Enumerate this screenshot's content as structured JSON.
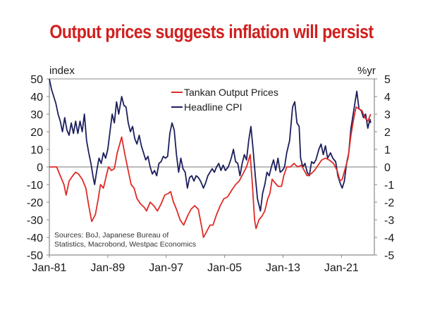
{
  "chart_data": {
    "type": "line",
    "title": "Output prices suggests inflation will persist",
    "title_color": "#d0201f",
    "left_axis": {
      "label": "index",
      "ylim": [
        -50,
        50
      ],
      "ticks": [
        "50",
        "40",
        "30",
        "20",
        "10",
        "0",
        "-10",
        "-20",
        "-30",
        "-40",
        "-50"
      ]
    },
    "right_axis": {
      "label": "%yr",
      "ylim": [
        -5,
        5
      ],
      "ticks": [
        "5",
        "4",
        "3",
        "2",
        "1",
        "0",
        "-1",
        "-2",
        "-3",
        "-4",
        "-5"
      ]
    },
    "x_axis": {
      "range": [
        1981,
        2025.5
      ],
      "ticks": [
        "Jan-81",
        "Jan-89",
        "Jan-97",
        "Jan-05",
        "Jan-13",
        "Jan-21"
      ],
      "tick_years": [
        1981,
        1989,
        1997,
        2005,
        2013,
        2021
      ]
    },
    "grid": false,
    "zero_line": true,
    "legend": {
      "placement": "top-center"
    },
    "source": [
      "Sources: BoJ, Japanese Bureau of",
      "Statistics, Macrobond, Westpac Economics"
    ],
    "series": [
      {
        "name": "Tankan Output Prices",
        "axis": "left",
        "color": "#e02a26",
        "points": [
          [
            1981.0,
            0
          ],
          [
            1982.0,
            0
          ],
          [
            1982.5,
            -5
          ],
          [
            1983.0,
            -10
          ],
          [
            1983.3,
            -16
          ],
          [
            1983.7,
            -8
          ],
          [
            1984.2,
            -5
          ],
          [
            1984.6,
            -3
          ],
          [
            1985.0,
            -4
          ],
          [
            1985.5,
            -7
          ],
          [
            1986.0,
            -12
          ],
          [
            1986.4,
            -22
          ],
          [
            1986.8,
            -31
          ],
          [
            1987.3,
            -27
          ],
          [
            1987.7,
            -18
          ],
          [
            1988.0,
            -10
          ],
          [
            1988.4,
            -12
          ],
          [
            1988.8,
            -5
          ],
          [
            1989.1,
            0
          ],
          [
            1989.5,
            -2
          ],
          [
            1989.9,
            -1
          ],
          [
            1990.3,
            8
          ],
          [
            1990.9,
            17
          ],
          [
            1991.3,
            8
          ],
          [
            1991.7,
            0
          ],
          [
            1992.2,
            -10
          ],
          [
            1992.6,
            -12
          ],
          [
            1993.0,
            -18
          ],
          [
            1993.5,
            -21
          ],
          [
            1994.0,
            -23
          ],
          [
            1994.3,
            -25
          ],
          [
            1994.8,
            -20
          ],
          [
            1995.3,
            -22
          ],
          [
            1995.8,
            -25
          ],
          [
            1996.3,
            -21
          ],
          [
            1996.8,
            -16
          ],
          [
            1997.3,
            -15
          ],
          [
            1997.6,
            -14
          ],
          [
            1998.0,
            -20
          ],
          [
            1998.4,
            -24
          ],
          [
            1998.9,
            -30
          ],
          [
            1999.4,
            -33
          ],
          [
            1999.9,
            -28
          ],
          [
            2000.4,
            -24
          ],
          [
            2000.9,
            -22
          ],
          [
            2001.4,
            -24
          ],
          [
            2001.9,
            -35
          ],
          [
            2002.1,
            -40
          ],
          [
            2002.5,
            -37
          ],
          [
            2003.0,
            -33
          ],
          [
            2003.4,
            -33
          ],
          [
            2003.9,
            -27
          ],
          [
            2004.4,
            -22
          ],
          [
            2004.9,
            -18
          ],
          [
            2005.4,
            -17
          ],
          [
            2006.0,
            -13
          ],
          [
            2006.5,
            -10
          ],
          [
            2007.0,
            -8
          ],
          [
            2007.5,
            -4
          ],
          [
            2008.0,
            0
          ],
          [
            2008.5,
            7
          ],
          [
            2008.8,
            -10
          ],
          [
            2009.1,
            -30
          ],
          [
            2009.3,
            -35
          ],
          [
            2009.7,
            -30
          ],
          [
            2010.1,
            -28
          ],
          [
            2010.5,
            -25
          ],
          [
            2010.9,
            -18
          ],
          [
            2011.2,
            -15
          ],
          [
            2011.5,
            -7
          ],
          [
            2011.9,
            -9
          ],
          [
            2012.3,
            -11
          ],
          [
            2012.8,
            -11
          ],
          [
            2013.1,
            -5
          ],
          [
            2013.5,
            0
          ],
          [
            2014.0,
            0
          ],
          [
            2014.5,
            2
          ],
          [
            2015.0,
            0
          ],
          [
            2015.5,
            1
          ],
          [
            2015.9,
            -2
          ],
          [
            2016.3,
            -5
          ],
          [
            2016.8,
            -4
          ],
          [
            2017.3,
            -2
          ],
          [
            2017.8,
            1
          ],
          [
            2018.3,
            4
          ],
          [
            2018.8,
            5
          ],
          [
            2019.3,
            4
          ],
          [
            2019.9,
            2
          ],
          [
            2020.4,
            -2
          ],
          [
            2020.8,
            -8
          ],
          [
            2021.1,
            -7
          ],
          [
            2021.5,
            -1
          ],
          [
            2021.9,
            5
          ],
          [
            2022.3,
            18
          ],
          [
            2022.7,
            28
          ],
          [
            2023.0,
            34
          ],
          [
            2023.4,
            33
          ],
          [
            2023.8,
            32
          ],
          [
            2024.2,
            28
          ],
          [
            2024.6,
            26
          ],
          [
            2025.0,
            30
          ]
        ]
      },
      {
        "name": "Headline CPI",
        "axis": "right",
        "color": "#1c1f5c",
        "points": [
          [
            1981.0,
            5.0
          ],
          [
            1981.3,
            4.4
          ],
          [
            1981.6,
            4.0
          ],
          [
            1981.9,
            3.6
          ],
          [
            1982.2,
            3.0
          ],
          [
            1982.5,
            2.6
          ],
          [
            1982.8,
            2.0
          ],
          [
            1983.1,
            2.8
          ],
          [
            1983.4,
            2.1
          ],
          [
            1983.7,
            1.8
          ],
          [
            1984.0,
            2.5
          ],
          [
            1984.3,
            1.9
          ],
          [
            1984.6,
            2.6
          ],
          [
            1984.9,
            1.9
          ],
          [
            1985.2,
            2.6
          ],
          [
            1985.5,
            2.0
          ],
          [
            1985.8,
            3.0
          ],
          [
            1986.1,
            1.5
          ],
          [
            1986.4,
            0.8
          ],
          [
            1986.7,
            0.2
          ],
          [
            1987.0,
            -0.6
          ],
          [
            1987.2,
            -1.0
          ],
          [
            1987.5,
            -0.2
          ],
          [
            1987.8,
            0.5
          ],
          [
            1988.1,
            0.2
          ],
          [
            1988.4,
            0.8
          ],
          [
            1988.7,
            0.5
          ],
          [
            1989.0,
            1.0
          ],
          [
            1989.3,
            2.0
          ],
          [
            1989.6,
            3.0
          ],
          [
            1989.9,
            2.5
          ],
          [
            1990.2,
            3.7
          ],
          [
            1990.5,
            3.0
          ],
          [
            1990.9,
            4.0
          ],
          [
            1991.2,
            3.5
          ],
          [
            1991.5,
            3.4
          ],
          [
            1991.8,
            2.5
          ],
          [
            1992.1,
            2.0
          ],
          [
            1992.4,
            2.3
          ],
          [
            1992.7,
            1.6
          ],
          [
            1993.0,
            1.3
          ],
          [
            1993.3,
            1.8
          ],
          [
            1993.6,
            1.2
          ],
          [
            1993.9,
            0.8
          ],
          [
            1994.2,
            0.4
          ],
          [
            1994.5,
            0.6
          ],
          [
            1994.8,
            0.0
          ],
          [
            1995.1,
            -0.4
          ],
          [
            1995.4,
            -0.2
          ],
          [
            1995.7,
            -0.5
          ],
          [
            1996.0,
            0.2
          ],
          [
            1996.3,
            0.3
          ],
          [
            1996.6,
            0.6
          ],
          [
            1996.9,
            0.5
          ],
          [
            1997.2,
            0.6
          ],
          [
            1997.5,
            1.9
          ],
          [
            1997.8,
            2.5
          ],
          [
            1998.1,
            2.1
          ],
          [
            1998.4,
            0.7
          ],
          [
            1998.7,
            -0.3
          ],
          [
            1999.0,
            0.5
          ],
          [
            1999.3,
            -0.1
          ],
          [
            1999.6,
            -0.3
          ],
          [
            1999.9,
            -1.2
          ],
          [
            2000.2,
            -0.6
          ],
          [
            2000.5,
            -0.5
          ],
          [
            2000.8,
            -0.8
          ],
          [
            2001.1,
            -0.5
          ],
          [
            2001.4,
            -0.6
          ],
          [
            2001.7,
            -0.8
          ],
          [
            2002.1,
            -1.2
          ],
          [
            2002.4,
            -0.9
          ],
          [
            2002.7,
            -0.5
          ],
          [
            2003.0,
            -0.3
          ],
          [
            2003.3,
            -0.1
          ],
          [
            2003.6,
            -0.3
          ],
          [
            2003.9,
            0.0
          ],
          [
            2004.2,
            0.2
          ],
          [
            2004.5,
            -0.2
          ],
          [
            2004.8,
            0.1
          ],
          [
            2005.1,
            -0.2
          ],
          [
            2005.5,
            0.0
          ],
          [
            2005.9,
            0.5
          ],
          [
            2006.2,
            1.0
          ],
          [
            2006.5,
            0.3
          ],
          [
            2006.8,
            0.2
          ],
          [
            2007.1,
            -0.5
          ],
          [
            2007.4,
            0.2
          ],
          [
            2007.7,
            0.7
          ],
          [
            2008.0,
            0.4
          ],
          [
            2008.3,
            1.5
          ],
          [
            2008.6,
            2.3
          ],
          [
            2008.9,
            1.0
          ],
          [
            2009.2,
            -0.5
          ],
          [
            2009.5,
            -1.8
          ],
          [
            2009.9,
            -2.5
          ],
          [
            2010.2,
            -1.5
          ],
          [
            2010.5,
            -1.0
          ],
          [
            2010.8,
            -0.3
          ],
          [
            2011.1,
            -0.5
          ],
          [
            2011.4,
            0.0
          ],
          [
            2011.7,
            0.4
          ],
          [
            2012.0,
            -0.2
          ],
          [
            2012.3,
            0.5
          ],
          [
            2012.6,
            -0.3
          ],
          [
            2012.9,
            -0.2
          ],
          [
            2013.2,
            0.0
          ],
          [
            2013.5,
            0.8
          ],
          [
            2013.9,
            1.5
          ],
          [
            2014.3,
            3.4
          ],
          [
            2014.6,
            3.7
          ],
          [
            2014.9,
            2.5
          ],
          [
            2015.2,
            2.3
          ],
          [
            2015.4,
            0.5
          ],
          [
            2015.7,
            0.0
          ],
          [
            2016.0,
            0.2
          ],
          [
            2016.3,
            -0.3
          ],
          [
            2016.6,
            -0.5
          ],
          [
            2016.9,
            0.3
          ],
          [
            2017.2,
            0.2
          ],
          [
            2017.5,
            0.4
          ],
          [
            2017.9,
            1.0
          ],
          [
            2018.2,
            1.3
          ],
          [
            2018.5,
            0.7
          ],
          [
            2018.8,
            1.2
          ],
          [
            2019.1,
            0.5
          ],
          [
            2019.5,
            0.8
          ],
          [
            2019.8,
            0.5
          ],
          [
            2020.2,
            0.3
          ],
          [
            2020.5,
            -0.5
          ],
          [
            2020.8,
            -0.9
          ],
          [
            2021.1,
            -1.2
          ],
          [
            2021.4,
            -0.8
          ],
          [
            2021.7,
            0.2
          ],
          [
            2022.0,
            0.8
          ],
          [
            2022.3,
            2.2
          ],
          [
            2022.6,
            3.0
          ],
          [
            2022.9,
            3.8
          ],
          [
            2023.1,
            4.3
          ],
          [
            2023.4,
            3.3
          ],
          [
            2023.7,
            3.2
          ],
          [
            2024.0,
            2.8
          ],
          [
            2024.3,
            3.0
          ],
          [
            2024.6,
            2.2
          ],
          [
            2024.9,
            2.7
          ],
          [
            2025.0,
            2.5
          ]
        ]
      }
    ]
  }
}
